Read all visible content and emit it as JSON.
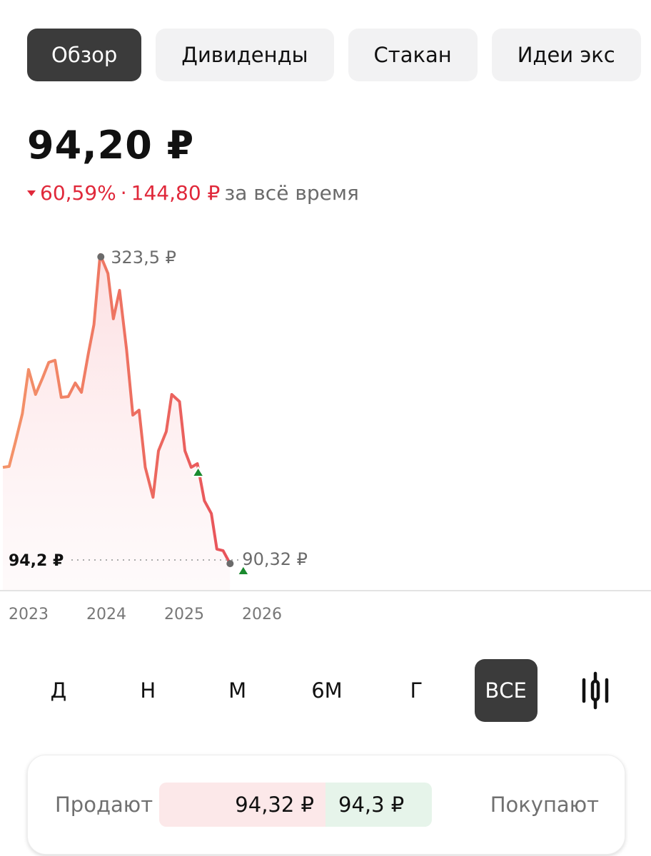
{
  "tabs": [
    {
      "label": "Обзор",
      "active": true
    },
    {
      "label": "Дивиденды",
      "active": false
    },
    {
      "label": "Стакан",
      "active": false
    },
    {
      "label": "Идеи экс",
      "active": false
    }
  ],
  "price": "94,20 ₽",
  "change": {
    "percent": "60,59%",
    "separator": "·",
    "amount": "144,80 ₽",
    "period_text": "за всё время",
    "direction": "down",
    "color": "#e0283a"
  },
  "chart_data": {
    "type": "area",
    "x_unit": "year",
    "xticks": [
      "2023",
      "2024",
      "2025",
      "2026"
    ],
    "line_color_start": "#f4956a",
    "line_color_end": "#e8525a",
    "points": [
      [
        2022.67,
        163.5
      ],
      [
        2022.75,
        164.1
      ],
      [
        2022.83,
        182.2
      ],
      [
        2022.92,
        203.5
      ],
      [
        2023.0,
        236.6
      ],
      [
        2023.09,
        217.9
      ],
      [
        2023.18,
        230.2
      ],
      [
        2023.26,
        241.9
      ],
      [
        2023.34,
        243.5
      ],
      [
        2023.42,
        215.8
      ],
      [
        2023.51,
        216.3
      ],
      [
        2023.6,
        226.5
      ],
      [
        2023.68,
        219.5
      ],
      [
        2023.77,
        248.9
      ],
      [
        2023.84,
        270.2
      ],
      [
        2023.92,
        322.5
      ],
      [
        2024.02,
        308.4
      ],
      [
        2024.09,
        274.5
      ],
      [
        2024.17,
        295.8
      ],
      [
        2024.26,
        251.5
      ],
      [
        2024.34,
        202.5
      ],
      [
        2024.42,
        206.2
      ],
      [
        2024.5,
        163.5
      ],
      [
        2024.6,
        141.1
      ],
      [
        2024.67,
        175.8
      ],
      [
        2024.77,
        190.2
      ],
      [
        2024.84,
        217.9
      ],
      [
        2024.94,
        212.6
      ],
      [
        2025.01,
        175.8
      ],
      [
        2025.09,
        163.5
      ],
      [
        2025.17,
        166.2
      ],
      [
        2025.26,
        138.5
      ],
      [
        2025.35,
        128.9
      ],
      [
        2025.42,
        102.3
      ],
      [
        2025.5,
        101.2
      ],
      [
        2025.59,
        91.5
      ]
    ],
    "max_label": "323,5 ₽",
    "max_value": 323.5,
    "current_label": "94,2 ₽",
    "current_value": 94.2,
    "min_label": "90,32 ₽",
    "min_value": 90.32,
    "markers": [
      {
        "type": "dividend-up",
        "x": 2025.18,
        "color": "#1a8a2e"
      },
      {
        "type": "dividend-up",
        "x": 2025.76,
        "color": "#1a8a2e"
      }
    ]
  },
  "periods": [
    {
      "label": "Д",
      "active": false
    },
    {
      "label": "Н",
      "active": false
    },
    {
      "label": "М",
      "active": false
    },
    {
      "label": "6М",
      "active": false
    },
    {
      "label": "Г",
      "active": false
    },
    {
      "label": "ВСЕ",
      "active": true
    },
    {
      "icon": "candlestick-icon"
    }
  ],
  "orderbook": {
    "sell_label": "Продают",
    "sell_price": "94,32 ₽",
    "buy_price": "94,3 ₽",
    "buy_label": "Покупают"
  }
}
